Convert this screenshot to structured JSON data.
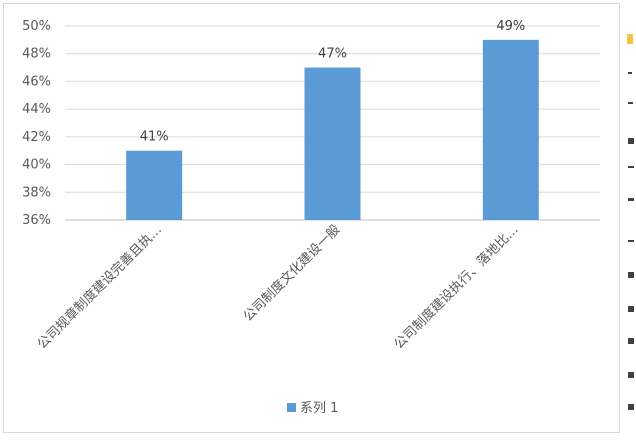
{
  "chart_data": {
    "type": "bar",
    "categories": [
      "公司规章制度建设完善且执…",
      "公司制度文化建设一般",
      "公司制度建设执行、落地比…"
    ],
    "series": [
      {
        "name": "系列 1",
        "values": [
          41,
          47,
          49
        ],
        "color": "#5b9bd5"
      }
    ],
    "data_labels": [
      "41%",
      "47%",
      "49%"
    ],
    "y_ticks": [
      "36%",
      "38%",
      "40%",
      "42%",
      "44%",
      "46%",
      "48%",
      "50%"
    ],
    "ylim": [
      36,
      50
    ],
    "y_step": 2,
    "grid": true,
    "legend_position": "bottom",
    "title": "",
    "xlabel": "",
    "ylabel": ""
  },
  "colors": {
    "gridline": "#d9d9d9",
    "axis": "#bfbfbf"
  }
}
